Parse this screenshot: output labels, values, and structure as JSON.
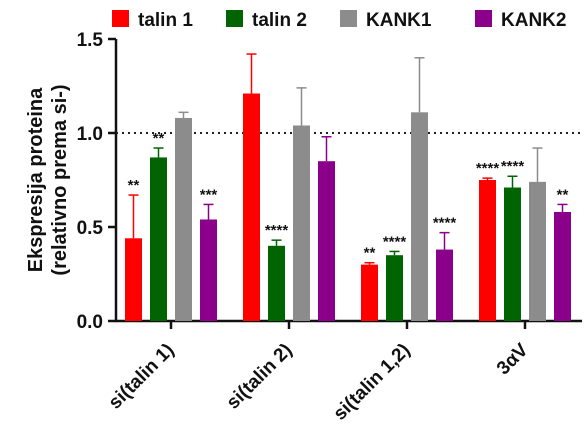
{
  "chart_data": {
    "type": "bar",
    "ylabel_line1": "Ekspresija proteina",
    "ylabel_line2": "(relativno prema si-)",
    "ylim": [
      0,
      1.5
    ],
    "yticks": [
      "0.0",
      "0.5",
      "1.0",
      "1.5"
    ],
    "reference_line": 1.0,
    "legend_position": "top",
    "categories": [
      "si(talin 1)",
      "si(talin 2)",
      "si(talin 1,2)",
      "3αV"
    ],
    "series": [
      {
        "name": "talin 1",
        "color": "#ff0000",
        "values": [
          0.44,
          1.21,
          0.3,
          0.75
        ],
        "errors": [
          0.23,
          0.21,
          0.01,
          0.01
        ],
        "significance": [
          "**",
          "",
          "**",
          "****"
        ]
      },
      {
        "name": "talin 2",
        "color": "#006400",
        "values": [
          0.87,
          0.4,
          0.35,
          0.71
        ],
        "errors": [
          0.05,
          0.03,
          0.02,
          0.06
        ],
        "significance": [
          "**",
          "****",
          "****",
          "****"
        ]
      },
      {
        "name": "KANK1",
        "color": "#8c8c8c",
        "values": [
          1.08,
          1.04,
          1.11,
          0.74
        ],
        "errors": [
          0.03,
          0.2,
          0.29,
          0.18
        ],
        "significance": [
          "",
          "",
          "",
          ""
        ]
      },
      {
        "name": "KANK2",
        "color": "#8b008b",
        "values": [
          0.54,
          0.85,
          0.38,
          0.58
        ],
        "errors": [
          0.08,
          0.13,
          0.09,
          0.04
        ],
        "significance": [
          "***",
          "",
          "****",
          "**"
        ]
      }
    ]
  }
}
